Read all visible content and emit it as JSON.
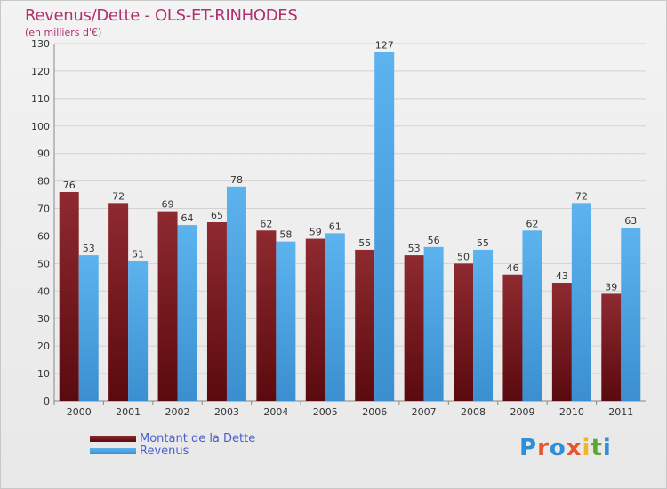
{
  "header": {
    "title": "Revenus/Dette - OLS-ET-RINHODES",
    "subtitle": "(en milliers d'€)"
  },
  "chart_data": {
    "type": "bar",
    "title": "Revenus/Dette - OLS-ET-RINHODES",
    "ylabel": "(en milliers d'€)",
    "xlabel": "",
    "categories": [
      "2000",
      "2001",
      "2002",
      "2003",
      "2004",
      "2005",
      "2006",
      "2007",
      "2008",
      "2009",
      "2010",
      "2011"
    ],
    "series": [
      {
        "name": "Montant de la Dette",
        "color": "#6e1418",
        "values": [
          76,
          72,
          69,
          65,
          62,
          59,
          55,
          53,
          50,
          46,
          43,
          39
        ]
      },
      {
        "name": "Revenus",
        "color": "#4aa3e4",
        "values": [
          53,
          51,
          64,
          78,
          58,
          61,
          127,
          56,
          55,
          62,
          72,
          63
        ]
      }
    ],
    "ylim": [
      0,
      130
    ],
    "yticks": [
      0,
      10,
      20,
      30,
      40,
      50,
      60,
      70,
      80,
      90,
      100,
      110,
      120,
      130
    ],
    "grid": true,
    "legend": "bottom-left"
  },
  "legend": {
    "items": [
      {
        "label": "Montant de la Dette",
        "color": "#6e1418"
      },
      {
        "label": "Revenus",
        "color": "#4aa3e4"
      }
    ]
  },
  "logo": {
    "text": "Proxiti",
    "letter_colors": [
      "#2e8fd8",
      "#e8542c",
      "#2e8fd8",
      "#e8542c",
      "#f2b42a",
      "#5aa832",
      "#2e8fd8"
    ]
  }
}
